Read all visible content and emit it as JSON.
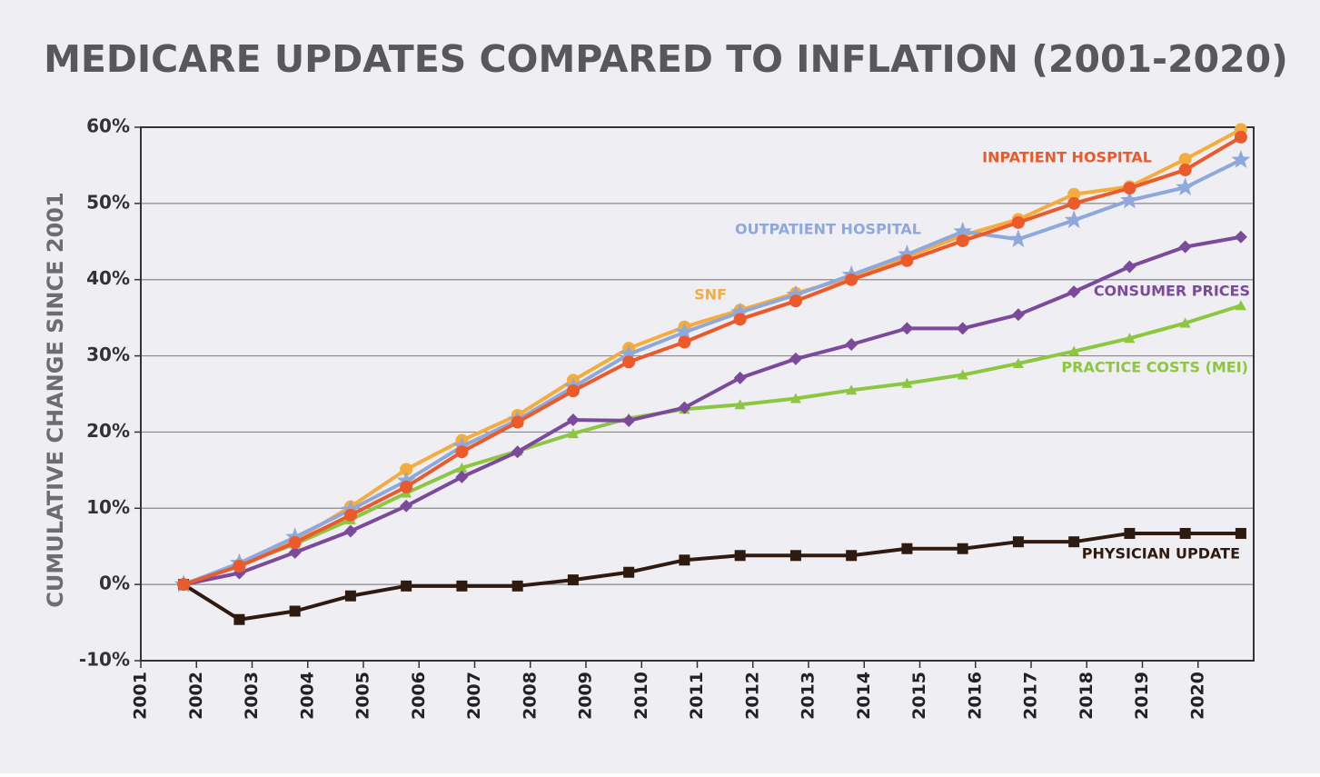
{
  "chart_data": {
    "type": "line",
    "title": "MEDICARE UPDATES COMPARED TO INFLATION (2001-2020)",
    "y_label": "CUMULATIVE CHANGE SINCE 2001",
    "categories": [
      "2001",
      "2002",
      "2003",
      "2004",
      "2005",
      "2006",
      "2007",
      "2008",
      "2009",
      "2010",
      "2011",
      "2012",
      "2013",
      "2014",
      "2015",
      "2016",
      "2017",
      "2018",
      "2019",
      "2020"
    ],
    "ylim": [
      -10,
      60
    ],
    "yticks": [
      {
        "value": -10,
        "label": "-10%"
      },
      {
        "value": 0,
        "label": "0%"
      },
      {
        "value": 10,
        "label": "10%"
      },
      {
        "value": 20,
        "label": "20%"
      },
      {
        "value": 30,
        "label": "30%"
      },
      {
        "value": 40,
        "label": "40%"
      },
      {
        "value": 50,
        "label": "50%"
      },
      {
        "value": 60,
        "label": "60%"
      }
    ],
    "grid": true,
    "series": [
      {
        "name": "SNF",
        "color": "#f5ac3d",
        "marker": "circle",
        "values": [
          0,
          2.6,
          5.8,
          10.2,
          15.1,
          18.9,
          22.2,
          26.8,
          31,
          33.8,
          36,
          38.2,
          40.3,
          43,
          45.8,
          47.9,
          51.2,
          52.2,
          55.8,
          59.7
        ]
      },
      {
        "name": "OUTPATIENT HOSPITAL",
        "color": "#8fa8db",
        "marker": "star",
        "values": [
          0,
          2.8,
          6.2,
          9.8,
          13.6,
          18.1,
          21.6,
          25.9,
          30.2,
          33.1,
          35.7,
          38,
          40.6,
          43.3,
          46.3,
          45.3,
          47.8,
          50.4,
          52.1,
          55.7
        ]
      },
      {
        "name": "INPATIENT HOSPITAL",
        "color": "#ea5a2b",
        "marker": "circle",
        "values": [
          0,
          2.4,
          5.5,
          9.1,
          12.8,
          17.4,
          21.3,
          25.4,
          29.2,
          31.8,
          34.8,
          37.2,
          40,
          42.5,
          45.1,
          47.5,
          50,
          52,
          54.4,
          58.7
        ]
      },
      {
        "name": "CONSUMER PRICES",
        "color": "#7b4a9a",
        "marker": "diamond",
        "values": [
          0,
          1.5,
          4.2,
          7,
          10.3,
          14.1,
          17.4,
          21.6,
          21.5,
          23.2,
          27.1,
          29.6,
          31.5,
          33.6,
          33.6,
          35.4,
          38.4,
          41.7,
          44.3,
          45.6
        ]
      },
      {
        "name": "PRACTICE COSTS (MEI)",
        "color": "#8dc63f",
        "marker": "triangle",
        "values": [
          0,
          2.6,
          5.3,
          8.5,
          12,
          15.3,
          17.5,
          19.8,
          21.8,
          23,
          23.6,
          24.4,
          25.5,
          26.4,
          27.5,
          29,
          30.6,
          32.3,
          34.3,
          36.6
        ]
      },
      {
        "name": "PHYSICIAN UPDATE",
        "color": "#2e1a0f",
        "marker": "square",
        "values": [
          0,
          -4.6,
          -3.5,
          -1.5,
          -0.2,
          -0.2,
          -0.2,
          0.6,
          1.6,
          3.2,
          3.8,
          3.8,
          3.8,
          4.7,
          4.7,
          5.6,
          5.6,
          6.7,
          6.7,
          6.7
        ]
      }
    ]
  }
}
